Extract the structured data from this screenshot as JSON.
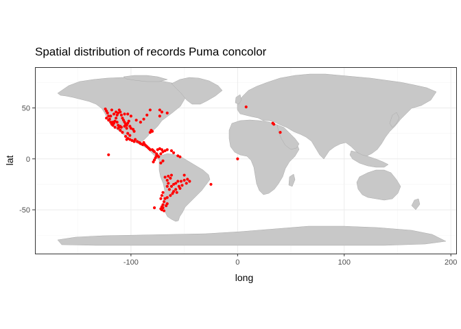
{
  "chart_data": {
    "type": "scatter",
    "title": "Spatial distribution of records Puma concolor",
    "xlabel": "long",
    "ylabel": "lat",
    "xlim": [
      -190,
      205
    ],
    "ylim": [
      -93,
      90
    ],
    "x_ticks": [
      -100,
      0,
      100,
      200
    ],
    "x_tick_labels": [
      "-100",
      "0",
      "100",
      "200"
    ],
    "y_ticks": [
      50,
      0,
      -50
    ],
    "y_tick_labels": [
      "50",
      "0",
      "-50"
    ],
    "grid": true,
    "legend": "none",
    "colors": {
      "points": "#ff0000",
      "land": "#c8c8c8",
      "land_border": "#a9a9a9",
      "panel_border": "#333333",
      "grid_major": "#ebebeb",
      "grid_minor": "#f5f5f5"
    },
    "points": [
      [
        -124,
        49
      ],
      [
        -123,
        47
      ],
      [
        -122,
        45
      ],
      [
        -121,
        42
      ],
      [
        -120,
        39
      ],
      [
        -119,
        36
      ],
      [
        -118,
        34
      ],
      [
        -117,
        33
      ],
      [
        -116,
        35
      ],
      [
        -115,
        37
      ],
      [
        -114,
        40
      ],
      [
        -113,
        43
      ],
      [
        -112,
        45
      ],
      [
        -111,
        48
      ],
      [
        -110,
        46
      ],
      [
        -109,
        43
      ],
      [
        -108,
        40
      ],
      [
        -107,
        38
      ],
      [
        -106,
        36
      ],
      [
        -105,
        34
      ],
      [
        -104,
        33
      ],
      [
        -103,
        35
      ],
      [
        -102,
        37
      ],
      [
        -101,
        32
      ],
      [
        -100,
        30
      ],
      [
        -112,
        33
      ],
      [
        -111,
        31
      ],
      [
        -110,
        32
      ],
      [
        -109,
        31
      ],
      [
        -113,
        36
      ],
      [
        -117,
        36
      ],
      [
        -121,
        38
      ],
      [
        -123,
        40
      ],
      [
        -106,
        32
      ],
      [
        -104,
        30
      ],
      [
        -98,
        29
      ],
      [
        -97,
        27
      ],
      [
        -103,
        25
      ],
      [
        -101,
        23
      ],
      [
        -105,
        22
      ],
      [
        -108,
        26
      ],
      [
        -110,
        28
      ],
      [
        -112,
        30
      ],
      [
        -115,
        31
      ],
      [
        -119,
        42
      ],
      [
        -116,
        44
      ],
      [
        -114,
        46
      ],
      [
        -118,
        48
      ],
      [
        -106,
        44
      ],
      [
        -103,
        44
      ],
      [
        -100,
        42
      ],
      [
        -95,
        38
      ],
      [
        -91,
        36
      ],
      [
        -88,
        39
      ],
      [
        -85,
        43
      ],
      [
        -82,
        48
      ],
      [
        -80,
        27
      ],
      [
        -81,
        28
      ],
      [
        -82,
        26
      ],
      [
        -73,
        42
      ],
      [
        -71,
        46
      ],
      [
        -66,
        45
      ],
      [
        -73,
        48
      ],
      [
        -104,
        19
      ],
      [
        -103,
        20
      ],
      [
        -101,
        19
      ],
      [
        -99,
        18
      ],
      [
        -97,
        17
      ],
      [
        -96,
        19
      ],
      [
        -94,
        17
      ],
      [
        -92,
        16
      ],
      [
        -91,
        15
      ],
      [
        -89,
        14
      ],
      [
        -88,
        16
      ],
      [
        -87,
        14
      ],
      [
        -86,
        13
      ],
      [
        -85,
        12
      ],
      [
        -84,
        11
      ],
      [
        -83,
        10
      ],
      [
        -82,
        9
      ],
      [
        -80,
        9
      ],
      [
        -79,
        8
      ],
      [
        -78,
        7
      ],
      [
        -76,
        5
      ],
      [
        -75,
        3
      ],
      [
        -74,
        2
      ],
      [
        -77,
        1
      ],
      [
        -78,
        -1
      ],
      [
        -79,
        -3
      ],
      [
        -72,
        5
      ],
      [
        -70,
        7
      ],
      [
        -68,
        8
      ],
      [
        -66,
        9
      ],
      [
        -62,
        8
      ],
      [
        -60,
        6
      ],
      [
        -56,
        3
      ],
      [
        -54,
        2
      ],
      [
        -72,
        -4
      ],
      [
        -70,
        -2
      ],
      [
        -76,
        3
      ],
      [
        -75,
        9
      ],
      [
        -73,
        10
      ],
      [
        -71,
        9
      ],
      [
        -121,
        4
      ],
      [
        -65,
        -17
      ],
      [
        -63,
        -19
      ],
      [
        -66,
        -21
      ],
      [
        -65,
        -24
      ],
      [
        -66,
        -27
      ],
      [
        -64,
        -30
      ],
      [
        -62,
        -27
      ],
      [
        -60,
        -25
      ],
      [
        -58,
        -24
      ],
      [
        -56,
        -22
      ],
      [
        -55,
        -27
      ],
      [
        -58,
        -30
      ],
      [
        -60,
        -32
      ],
      [
        -61,
        -34
      ],
      [
        -63,
        -36
      ],
      [
        -66,
        -38
      ],
      [
        -68,
        -39
      ],
      [
        -69,
        -42
      ],
      [
        -70,
        -45
      ],
      [
        -71,
        -47
      ],
      [
        -72,
        -49
      ],
      [
        -71,
        -50
      ],
      [
        -70,
        -48
      ],
      [
        -69,
        -51
      ],
      [
        -67,
        -46
      ],
      [
        -66,
        -44
      ],
      [
        -50,
        -16
      ],
      [
        -47,
        -20
      ],
      [
        -45,
        -22
      ],
      [
        -48,
        -24
      ],
      [
        -52,
        -26
      ],
      [
        -54,
        -29
      ],
      [
        -57,
        -33
      ],
      [
        -70,
        -33
      ],
      [
        -71,
        -36
      ],
      [
        -72,
        -39
      ],
      [
        -53,
        -22
      ],
      [
        -50,
        -21
      ],
      [
        -62,
        -16
      ],
      [
        -68,
        -18
      ],
      [
        -78,
        -48
      ],
      [
        -25,
        -25
      ],
      [
        0,
        0
      ],
      [
        8,
        51
      ],
      [
        33,
        35
      ],
      [
        34,
        34
      ],
      [
        40,
        26
      ]
    ]
  }
}
